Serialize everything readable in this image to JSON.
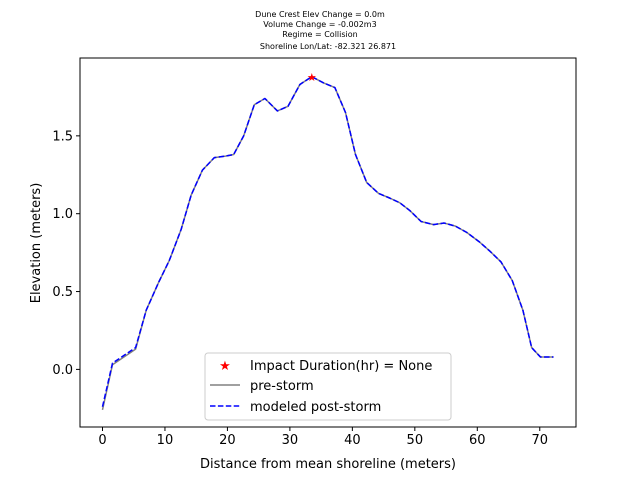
{
  "chart_data": {
    "type": "line",
    "title_lines": [
      "Dune Crest Elev Change = 0.0m",
      "Volume Change = -0.002m3",
      "Regime = Collision",
      "Shoreline Lon/Lat: -82.321 26.871"
    ],
    "xlabel": "Distance from mean shoreline (meters)",
    "ylabel": "Elevation (meters)",
    "xlim": [
      -3.6,
      75.8
    ],
    "ylim": [
      -0.37,
      2.0
    ],
    "xticks": [
      0,
      10,
      20,
      30,
      40,
      50,
      60,
      70
    ],
    "yticks": [
      0.0,
      0.5,
      1.0,
      1.5
    ],
    "ytick_labels": [
      "0.0",
      "0.5",
      "1.0",
      "1.5"
    ],
    "grid": false,
    "legend_position": "lower center",
    "series": [
      {
        "name": "Impact Duration(hr) = None",
        "kind": "marker",
        "color": "#ff0000",
        "x": [
          33.5
        ],
        "y": [
          1.88
        ]
      },
      {
        "name": "pre-storm",
        "kind": "line",
        "color": "#808080",
        "x": [
          0,
          1.6,
          5.3,
          7.0,
          9.0,
          10.7,
          12.6,
          14.2,
          16.0,
          17.9,
          19.7,
          21.0,
          22.6,
          24.3,
          26.0,
          28.0,
          29.7,
          31.6,
          33.5,
          35.4,
          37.2,
          38.9,
          40.5,
          42.3,
          44.2,
          46.0,
          47.6,
          49.2,
          51.0,
          53.0,
          54.7,
          56.5,
          58.3,
          60.3,
          62.0,
          63.8,
          65.6,
          67.3,
          68.7,
          70.1,
          72.2
        ],
        "y": [
          -0.26,
          0.03,
          0.13,
          0.38,
          0.56,
          0.7,
          0.9,
          1.12,
          1.28,
          1.36,
          1.37,
          1.38,
          1.5,
          1.7,
          1.74,
          1.66,
          1.69,
          1.83,
          1.88,
          1.84,
          1.81,
          1.65,
          1.38,
          1.2,
          1.13,
          1.1,
          1.07,
          1.02,
          0.95,
          0.93,
          0.94,
          0.92,
          0.88,
          0.82,
          0.76,
          0.69,
          0.57,
          0.38,
          0.14,
          0.08,
          0.08
        ]
      },
      {
        "name": "modeled post-storm",
        "kind": "dashed-line",
        "color": "#0000ff",
        "x": [
          0,
          1.6,
          5.3,
          7.0,
          9.0,
          10.7,
          12.6,
          14.2,
          16.0,
          17.9,
          19.7,
          21.0,
          22.6,
          24.3,
          26.0,
          28.0,
          29.7,
          31.6,
          33.5,
          35.4,
          37.2,
          38.9,
          40.5,
          42.3,
          44.2,
          46.0,
          47.6,
          49.2,
          51.0,
          53.0,
          54.7,
          56.5,
          58.3,
          60.3,
          62.0,
          63.8,
          65.6,
          67.3,
          68.7,
          70.1,
          72.2
        ],
        "y": [
          -0.24,
          0.04,
          0.14,
          0.38,
          0.56,
          0.7,
          0.9,
          1.12,
          1.28,
          1.36,
          1.37,
          1.38,
          1.5,
          1.7,
          1.74,
          1.66,
          1.69,
          1.83,
          1.88,
          1.84,
          1.81,
          1.65,
          1.38,
          1.2,
          1.13,
          1.1,
          1.07,
          1.02,
          0.95,
          0.93,
          0.94,
          0.92,
          0.88,
          0.82,
          0.76,
          0.69,
          0.57,
          0.38,
          0.14,
          0.08,
          0.08
        ]
      }
    ]
  }
}
